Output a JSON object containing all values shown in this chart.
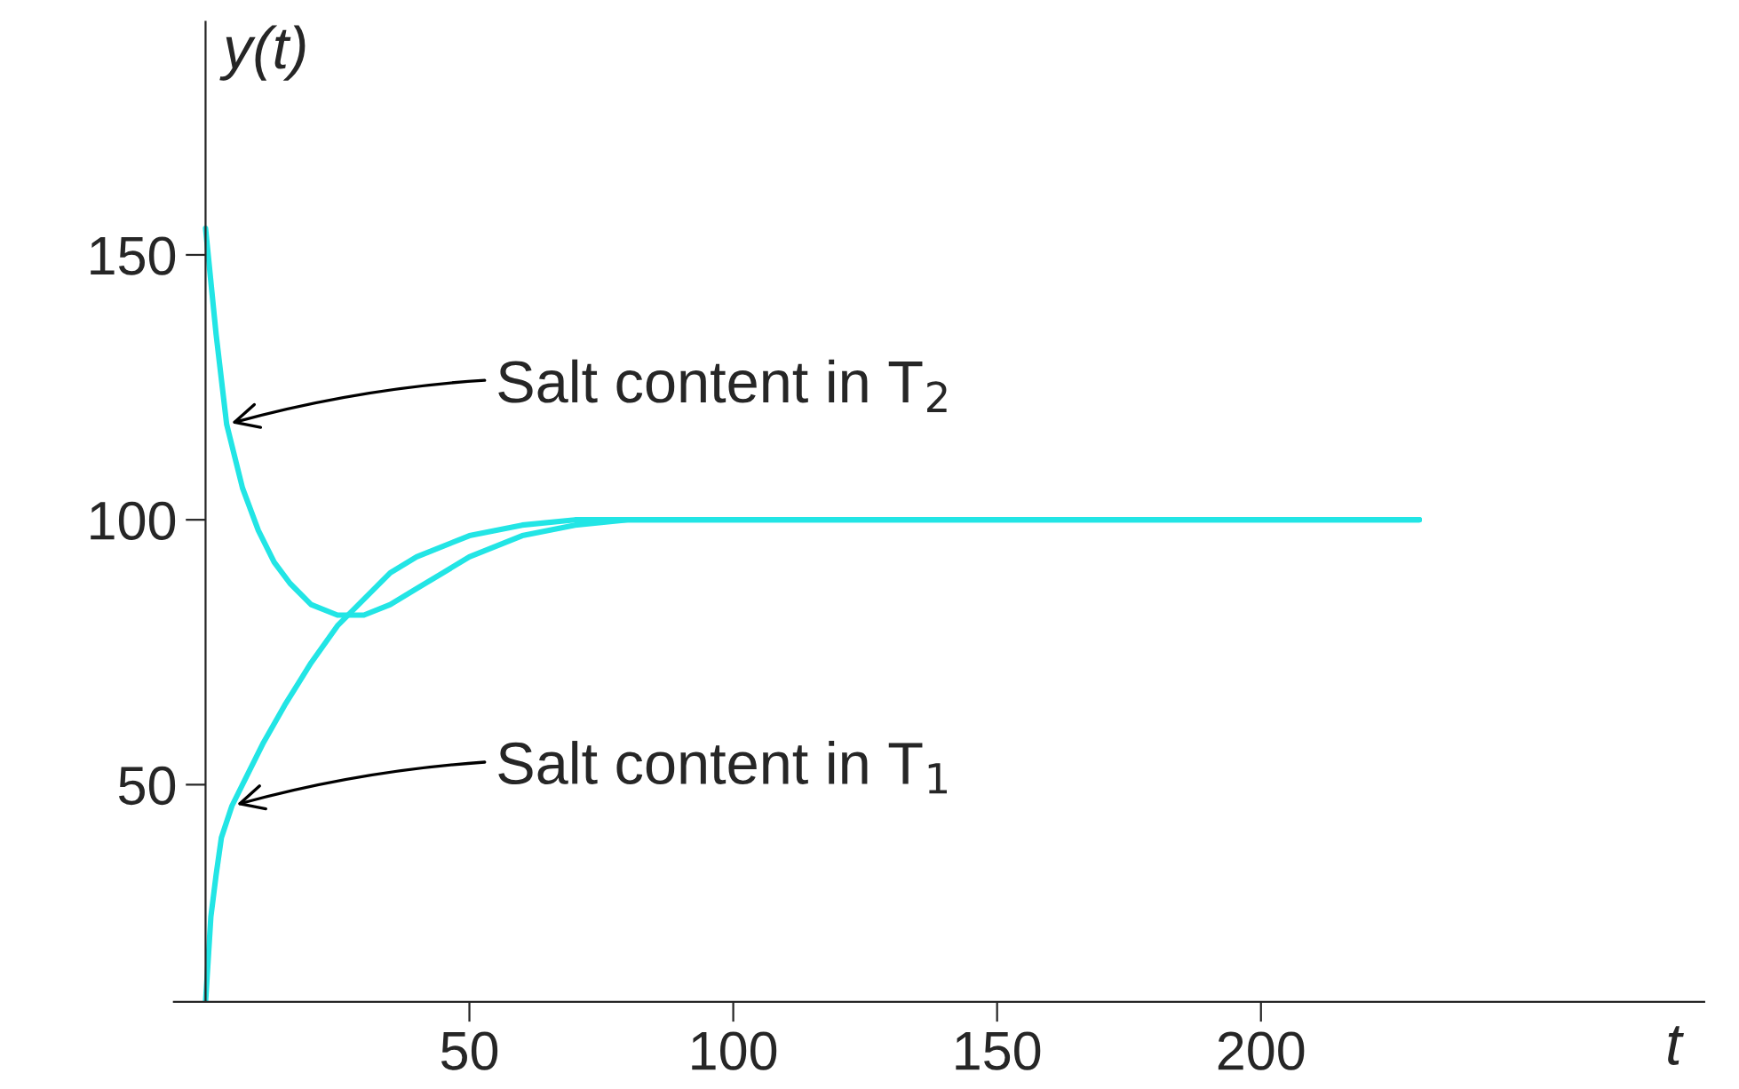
{
  "chart_data": {
    "type": "line",
    "xlabel": "t",
    "ylabel": "y(t)",
    "xlim": [
      -6,
      284
    ],
    "ylim": [
      9,
      194
    ],
    "xticks": [
      50,
      100,
      150,
      200
    ],
    "yticks": [
      50,
      100,
      150
    ],
    "grid": false,
    "legend": false,
    "marker": "none",
    "line_style": "solid",
    "series": [
      {
        "color": "#22e5e5",
        "x": [
          0,
          2,
          4,
          7,
          10,
          13,
          16,
          20,
          25,
          30,
          35,
          40,
          45,
          50,
          60,
          70,
          80,
          100,
          150,
          230
        ],
        "values": [
          155,
          135,
          118,
          106,
          98,
          92,
          88,
          84,
          82,
          82,
          84,
          87,
          90,
          93,
          97,
          99,
          100,
          100,
          100,
          100
        ]
      },
      {
        "color": "#22e5e5",
        "x": [
          0,
          1,
          2,
          3,
          5,
          8,
          11,
          15,
          20,
          25,
          30,
          35,
          40,
          50,
          60,
          70,
          80,
          100,
          150,
          230
        ],
        "values": [
          9,
          25,
          33,
          40,
          46,
          52,
          58,
          65,
          73,
          80,
          85,
          90,
          93,
          97,
          99,
          100,
          100,
          100,
          100,
          100
        ]
      }
    ],
    "annotations": [
      {
        "text": "Salt content in T$_{2}$",
        "x": 4,
        "y": 118
      },
      {
        "text": "Salt content in T$_{1}$",
        "x": 5,
        "y": 46
      }
    ]
  }
}
